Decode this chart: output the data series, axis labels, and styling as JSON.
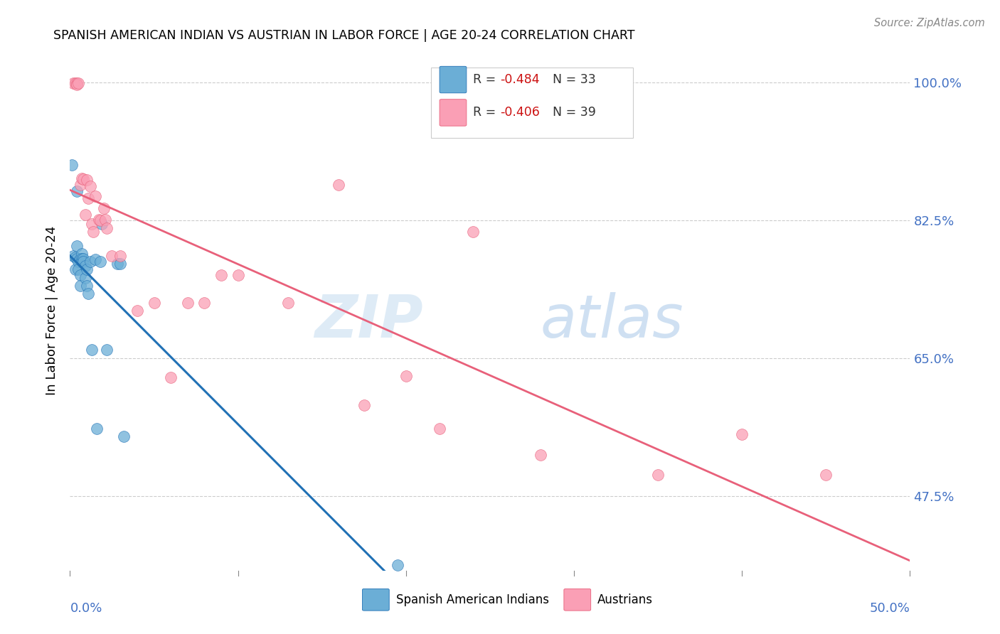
{
  "title": "SPANISH AMERICAN INDIAN VS AUSTRIAN IN LABOR FORCE | AGE 20-24 CORRELATION CHART",
  "source": "Source: ZipAtlas.com",
  "ylabel": "In Labor Force | Age 20-24",
  "ytick_values": [
    0.475,
    0.65,
    0.825,
    1.0
  ],
  "ytick_labels": [
    "47.5%",
    "65.0%",
    "82.5%",
    "100.0%"
  ],
  "xmin": 0.0,
  "xmax": 0.5,
  "ymin": 0.38,
  "ymax": 1.04,
  "legend_blue_R": "-0.484",
  "legend_blue_N": "33",
  "legend_pink_R": "-0.406",
  "legend_pink_N": "39",
  "blue_color": "#6baed6",
  "pink_color": "#fa9fb5",
  "blue_line_color": "#2171b5",
  "pink_line_color": "#e8607a",
  "watermark_zip": "ZIP",
  "watermark_atlas": "atlas",
  "blue_scatter_x": [
    0.001,
    0.004,
    0.002,
    0.003,
    0.003,
    0.004,
    0.004,
    0.005,
    0.005,
    0.006,
    0.006,
    0.006,
    0.007,
    0.007,
    0.007,
    0.008,
    0.008,
    0.009,
    0.009,
    0.01,
    0.01,
    0.011,
    0.012,
    0.013,
    0.015,
    0.016,
    0.018,
    0.019,
    0.022,
    0.028,
    0.03,
    0.032,
    0.195
  ],
  "blue_scatter_y": [
    0.895,
    0.862,
    0.78,
    0.778,
    0.762,
    0.776,
    0.792,
    0.772,
    0.762,
    0.776,
    0.755,
    0.742,
    0.782,
    0.776,
    0.772,
    0.776,
    0.772,
    0.767,
    0.752,
    0.762,
    0.742,
    0.732,
    0.772,
    0.66,
    0.775,
    0.56,
    0.772,
    0.82,
    0.66,
    0.77,
    0.77,
    0.55,
    0.387
  ],
  "pink_scatter_x": [
    0.002,
    0.003,
    0.004,
    0.004,
    0.005,
    0.006,
    0.007,
    0.008,
    0.009,
    0.01,
    0.011,
    0.012,
    0.013,
    0.014,
    0.015,
    0.017,
    0.018,
    0.02,
    0.021,
    0.022,
    0.025,
    0.03,
    0.04,
    0.06,
    0.09,
    0.1,
    0.175,
    0.22,
    0.28,
    0.35,
    0.4,
    0.45,
    0.05,
    0.07,
    0.08,
    0.13,
    0.16,
    0.2,
    0.24
  ],
  "pink_scatter_y": [
    0.999,
    0.999,
    0.999,
    0.997,
    0.999,
    0.87,
    0.878,
    0.877,
    0.832,
    0.876,
    0.853,
    0.868,
    0.82,
    0.81,
    0.855,
    0.826,
    0.825,
    0.84,
    0.826,
    0.815,
    0.78,
    0.78,
    0.71,
    0.625,
    0.755,
    0.755,
    0.59,
    0.56,
    0.527,
    0.502,
    0.553,
    0.502,
    0.72,
    0.72,
    0.72,
    0.72,
    0.87,
    0.627,
    0.81
  ]
}
